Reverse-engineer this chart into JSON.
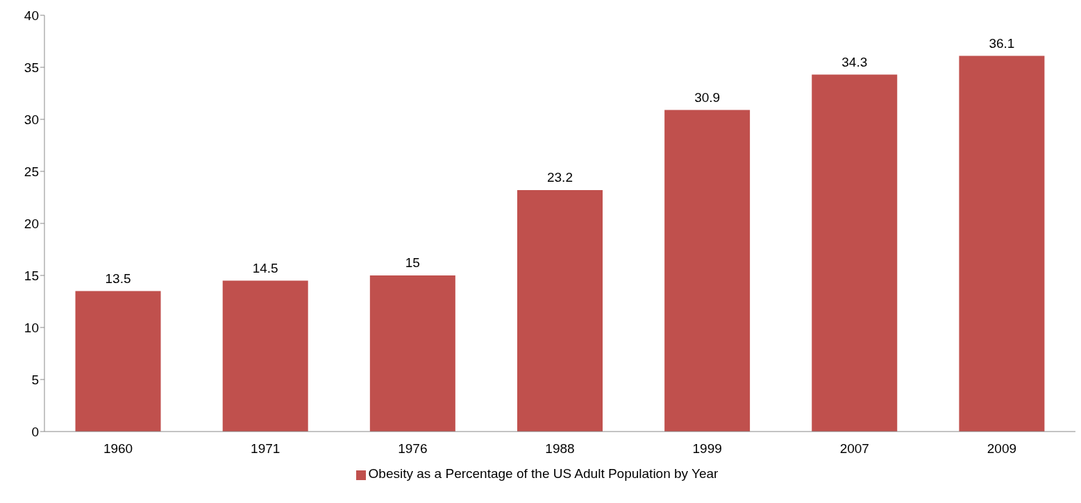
{
  "chart_data": {
    "type": "bar",
    "categories": [
      "1960",
      "1971",
      "1976",
      "1988",
      "1999",
      "2007",
      "2009"
    ],
    "series": [
      {
        "name": "Obesity as a Percentage of the US Adult Population by Year",
        "color": "#c0504d",
        "values": [
          13.5,
          14.5,
          15,
          23.2,
          30.9,
          34.3,
          36.1
        ]
      }
    ],
    "ylim": [
      0,
      40
    ],
    "yticks": [
      0,
      5,
      10,
      15,
      20,
      25,
      30,
      35,
      40
    ],
    "grid": false,
    "legend": "bottom",
    "data_labels": true
  }
}
